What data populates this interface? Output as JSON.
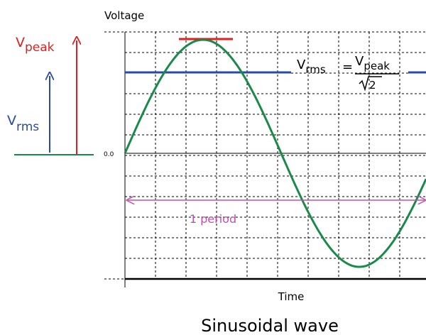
{
  "y_axis_label": "Voltage",
  "x_axis_label": "Time",
  "zero_label": "0.0",
  "title": "Sinusoidal wave",
  "vpeak": {
    "main": "V",
    "sub": "peak"
  },
  "vrms": {
    "main": "V",
    "sub": "rms"
  },
  "formula": {
    "lhs_main": "V",
    "lhs_sub": "rms",
    "equals": "=",
    "num_main": "V",
    "num_sub": "peak",
    "den": "2"
  },
  "period_label": "1 period"
}
